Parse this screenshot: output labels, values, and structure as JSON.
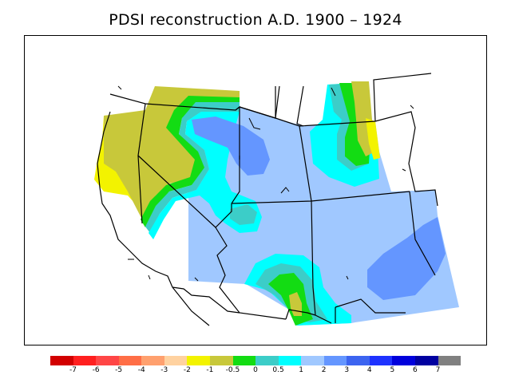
{
  "title": "PDSI reconstruction A.D. 1900 – 1924",
  "map": {
    "region": "Western United States",
    "colors": {
      "yellow": "#f3f300",
      "olive": "#c8c83a",
      "green": "#13dc13",
      "teal": "#3ccdc8",
      "cyan": "#00ffff",
      "light_blue": "#a0c8ff",
      "mid_blue": "#6496ff",
      "blue": "#3c64f0"
    }
  },
  "legend": {
    "colors": [
      "#d20000",
      "#ff1f1f",
      "#ff4646",
      "#ff6e46",
      "#ffa06e",
      "#ffd2a0",
      "#f3f300",
      "#c8c83a",
      "#13dc13",
      "#3ccdc8",
      "#00ffff",
      "#a0c8ff",
      "#6496ff",
      "#3c64f0",
      "#1e32ff",
      "#0000dc",
      "#0000a0",
      "#808080"
    ],
    "labels": [
      "-7",
      "-6",
      "-5",
      "-4",
      "-3",
      "-2",
      "-1",
      "-0.5",
      "0",
      "0.5",
      "1",
      "2",
      "3",
      "4",
      "5",
      "6",
      "7"
    ]
  }
}
